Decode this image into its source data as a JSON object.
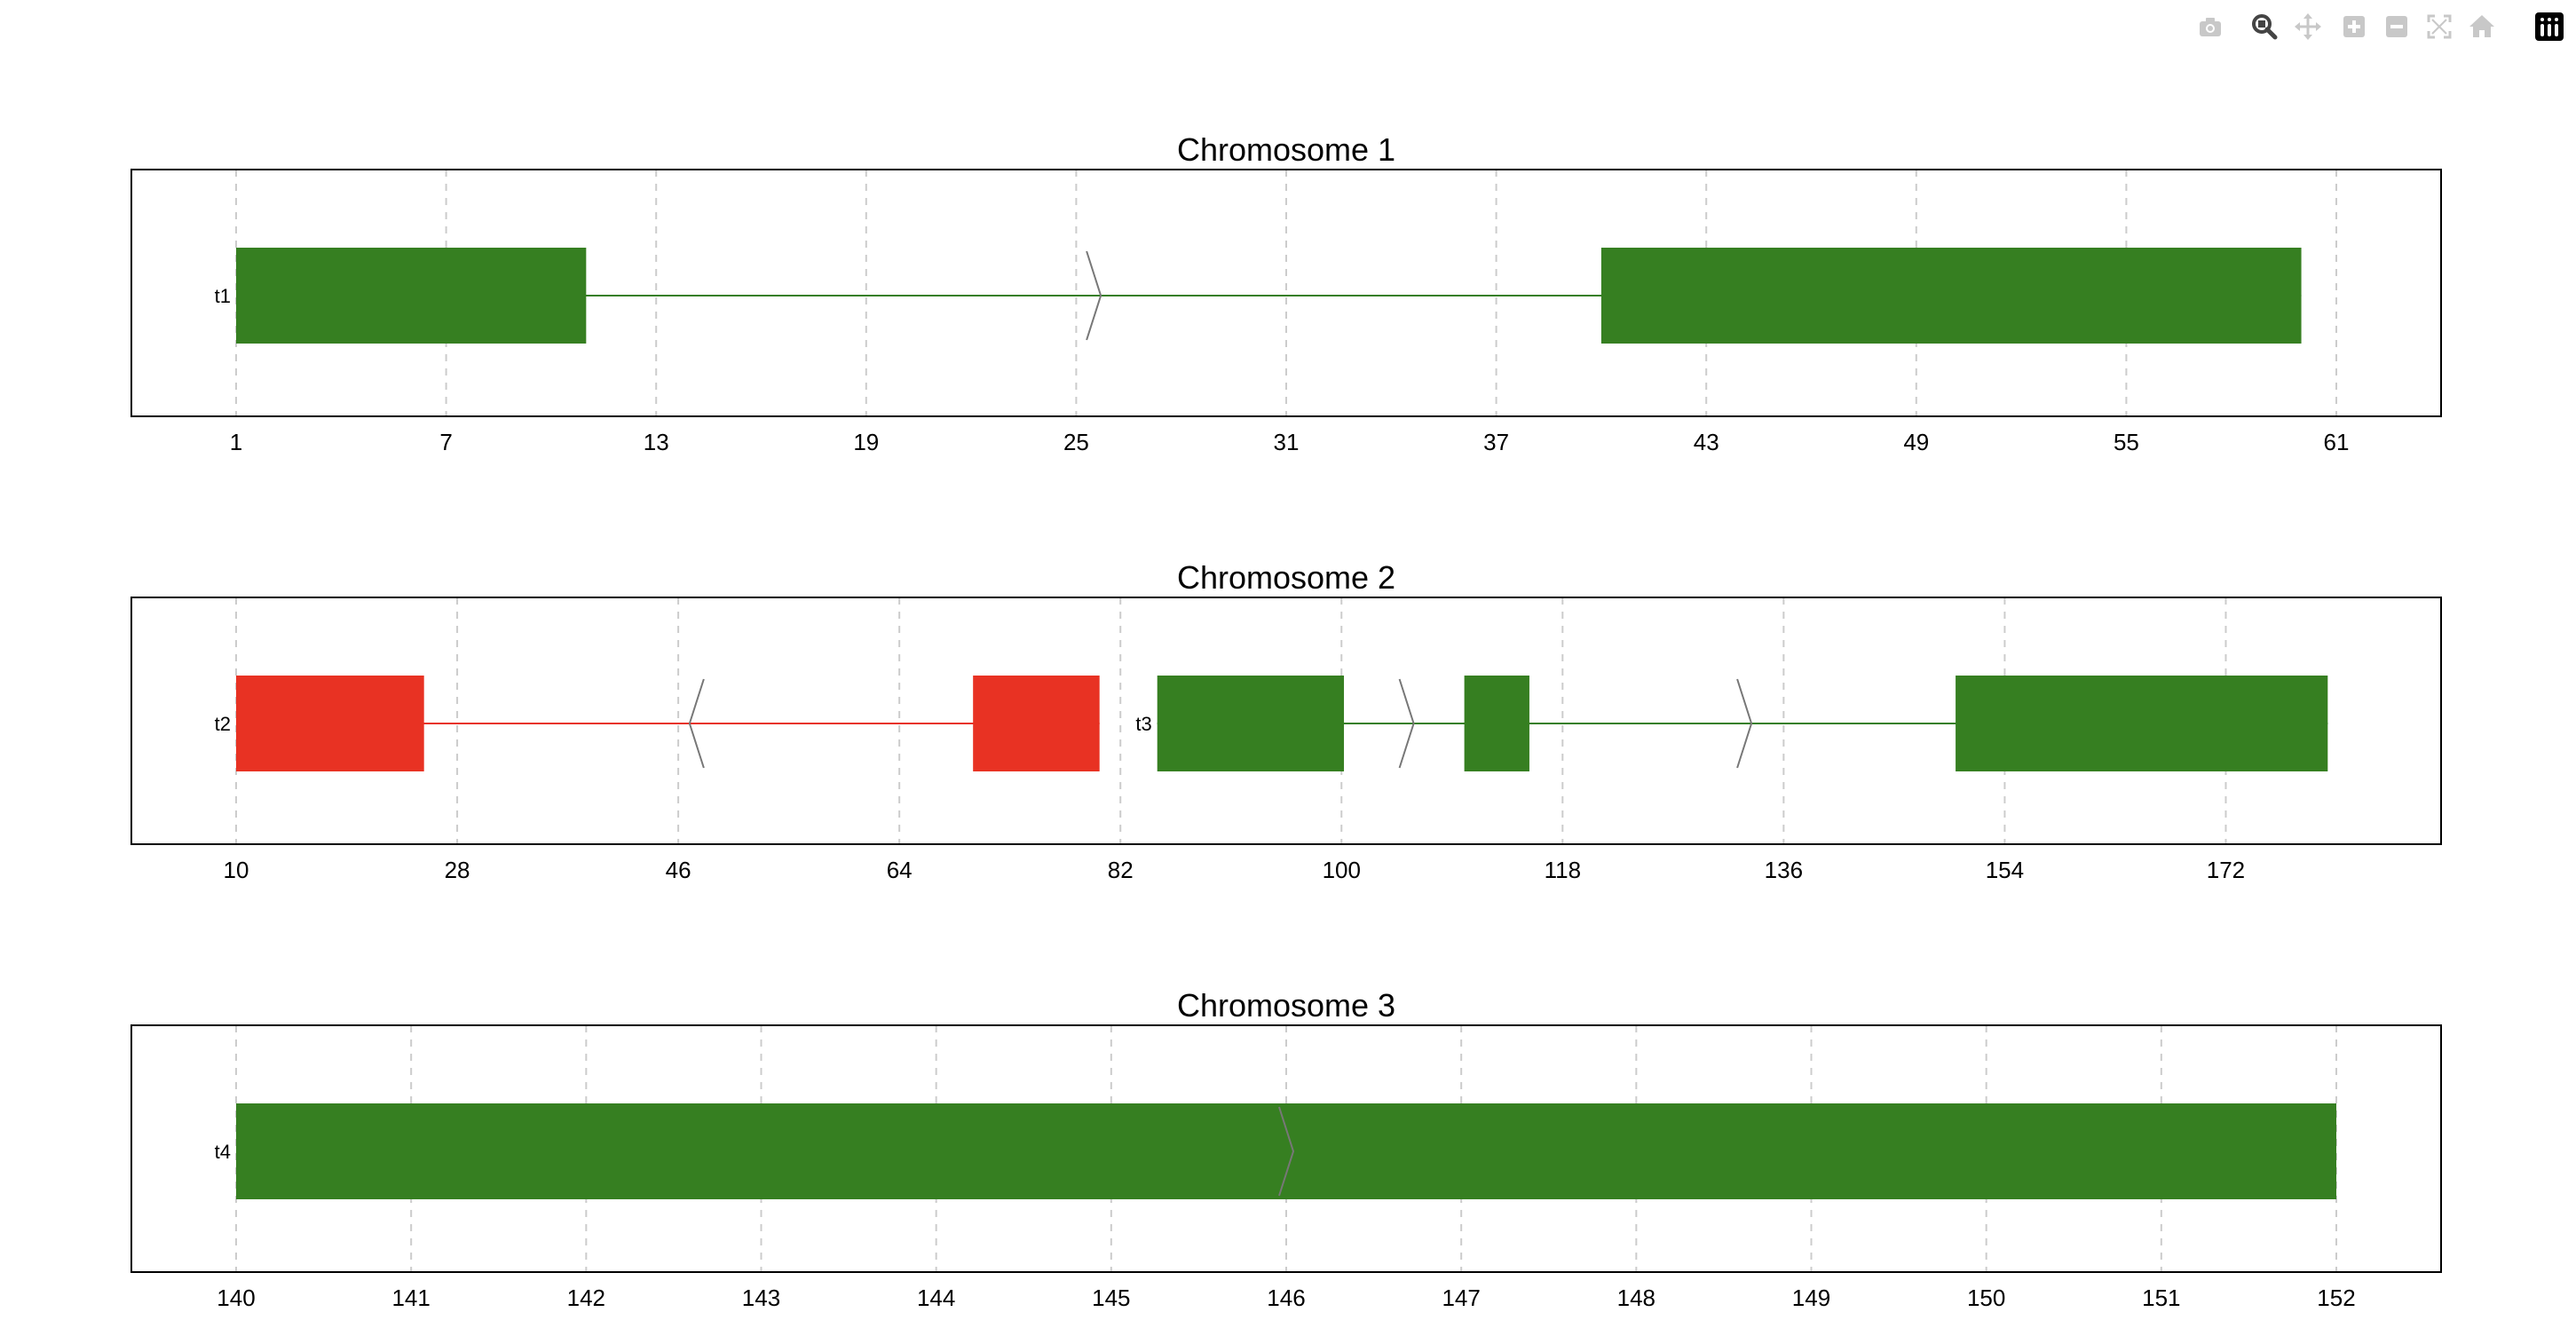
{
  "modebar": {
    "buttons": [
      {
        "icon": "camera-icon",
        "name": "download-plot-button"
      },
      {
        "icon": "magnifier-icon",
        "name": "zoom-button",
        "active": true
      },
      {
        "icon": "pan-icon",
        "name": "pan-button"
      },
      {
        "icon": "plus-square-icon",
        "name": "zoom-in-button"
      },
      {
        "icon": "minus-square-icon",
        "name": "zoom-out-button"
      },
      {
        "icon": "autoscale-icon",
        "name": "autoscale-button"
      },
      {
        "icon": "home-icon",
        "name": "reset-axes-button"
      },
      {
        "icon": "plotly-logo-icon",
        "name": "plotly-logo"
      }
    ],
    "colors": {
      "inactive": "#c8c8c8",
      "active": "#444444",
      "logo_bg": "#000000"
    }
  },
  "colors": {
    "plus_strand": "#367f21",
    "minus_strand": "#e83223",
    "arrow": "#777777",
    "grid": "#cccccc",
    "frame": "#000000"
  },
  "chart_data": [
    {
      "type": "gene-structure",
      "title": "Chromosome 1",
      "xlim": [
        1,
        61
      ],
      "ticks": [
        1,
        7,
        13,
        19,
        25,
        31,
        37,
        43,
        49,
        55,
        61
      ],
      "grid": true,
      "transcripts": [
        {
          "label": "t1",
          "strand": "+",
          "exons": [
            [
              1,
              11
            ],
            [
              40,
              60
            ]
          ],
          "arrows": [
            25.5
          ]
        }
      ]
    },
    {
      "type": "gene-structure",
      "title": "Chromosome 2",
      "xlim": [
        10,
        181
      ],
      "ticks": [
        10,
        28,
        46,
        64,
        82,
        100,
        118,
        136,
        154,
        172
      ],
      "grid": true,
      "transcripts": [
        {
          "label": "t2",
          "strand": "-",
          "exons": [
            [
              10,
              25.3
            ],
            [
              70,
              80.3
            ]
          ],
          "arrows": [
            47.5
          ]
        },
        {
          "label": "t3",
          "strand": "+",
          "exons": [
            [
              85,
              100.2
            ],
            [
              110,
              115.3
            ],
            [
              150,
              180.3
            ]
          ],
          "arrows": [
            105.3,
            132.8
          ]
        }
      ]
    },
    {
      "type": "gene-structure",
      "title": "Chromosome 3",
      "xlim": [
        140,
        152
      ],
      "ticks": [
        140,
        141,
        142,
        143,
        144,
        145,
        146,
        147,
        148,
        149,
        150,
        151,
        152
      ],
      "grid": true,
      "transcripts": [
        {
          "label": "t4",
          "strand": "+",
          "exons": [
            [
              140,
              152
            ]
          ],
          "arrows": [
            146
          ]
        }
      ]
    }
  ]
}
